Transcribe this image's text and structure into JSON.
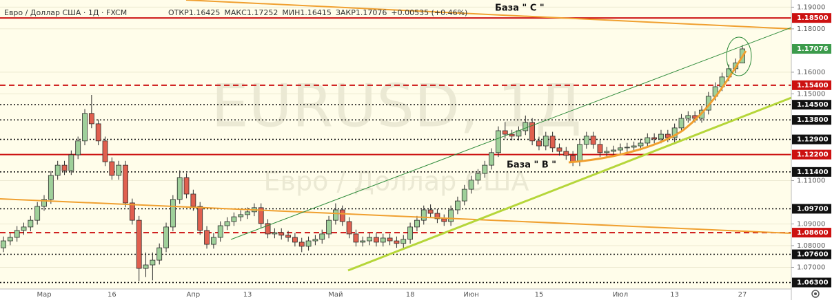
{
  "chart_data": {
    "type": "candlestick",
    "symbol": "Евро / Доллар США · 1Д · FXCM",
    "ohlc_names": [
      "ОТКР",
      "МАКС",
      "МИН",
      "ЗАКР"
    ],
    "change": "+0.00535 (+0.46%)",
    "watermark": "EURUSD, 1Д",
    "watermark_sub": "Евро / Доллар США",
    "annotations": [
      "База \" С \"",
      "База \" В \""
    ],
    "up_color": "#9fd09a",
    "down_color": "#e0604f",
    "wick_color": "#2b2b2b",
    "last_color": "#3c9b4c",
    "grid": true,
    "ylim": [
      1.06,
      1.1933
    ],
    "yticks": [
      {
        "value": 1.19,
        "label": "1.19000"
      },
      {
        "value": 1.18,
        "label": "1.18000"
      },
      {
        "value": 1.16,
        "label": "1.16000"
      },
      {
        "value": 1.15,
        "label": "1.15000"
      },
      {
        "value": 1.11,
        "label": "1.11000"
      },
      {
        "value": 1.09,
        "label": "1.09000"
      },
      {
        "value": 1.08,
        "label": "1.08000"
      },
      {
        "value": 1.07,
        "label": "1.07000"
      }
    ],
    "levels": [
      {
        "value": 1.185,
        "label": "1.18500",
        "color": "#cc1111",
        "style": "solid"
      },
      {
        "value": 1.154,
        "label": "1.15400",
        "color": "#cc1111",
        "style": "dashed"
      },
      {
        "value": 1.145,
        "label": "1.14500",
        "color": "#111111",
        "style": "dotted"
      },
      {
        "value": 1.138,
        "label": "1.13800",
        "color": "#111111",
        "style": "dotted"
      },
      {
        "value": 1.129,
        "label": "1.12900",
        "color": "#111111",
        "style": "dotted"
      },
      {
        "value": 1.122,
        "label": "1.12200",
        "color": "#cc1111",
        "style": "solid"
      },
      {
        "value": 1.114,
        "label": "1.11400",
        "color": "#111111",
        "style": "dotted"
      },
      {
        "value": 1.097,
        "label": "1.09700",
        "color": "#111111",
        "style": "dotted"
      },
      {
        "value": 1.086,
        "label": "1.08600",
        "color": "#cc1111",
        "style": "dashed"
      },
      {
        "value": 1.076,
        "label": "1.07600",
        "color": "#111111",
        "style": "dotted"
      },
      {
        "value": 1.063,
        "label": "1.06300",
        "color": "#111111",
        "style": "dotted"
      }
    ],
    "categories": [
      null,
      null,
      null,
      null,
      null,
      null,
      "Мар",
      null,
      null,
      null,
      null,
      null,
      null,
      null,
      null,
      null,
      "16",
      null,
      null,
      null,
      null,
      null,
      null,
      null,
      null,
      null,
      null,
      null,
      "Апр",
      null,
      null,
      null,
      null,
      null,
      null,
      null,
      "13",
      null,
      null,
      null,
      null,
      null,
      null,
      null,
      null,
      null,
      null,
      null,
      null,
      "Май",
      null,
      null,
      null,
      null,
      null,
      null,
      null,
      null,
      null,
      null,
      "18",
      null,
      null,
      null,
      null,
      null,
      null,
      null,
      null,
      "Июн",
      null,
      null,
      null,
      null,
      null,
      null,
      null,
      null,
      null,
      "15",
      null,
      null,
      null,
      null,
      null,
      null,
      null,
      null,
      null,
      null,
      null,
      "Июл",
      null,
      null,
      null,
      null,
      null,
      null,
      null,
      "13",
      null,
      null,
      null,
      null,
      null,
      null,
      null,
      null,
      null,
      "27"
    ],
    "open": [
      1.079,
      1.0822,
      1.0838,
      1.087,
      1.0886,
      1.0917,
      1.0981,
      1.1013,
      1.1124,
      1.1171,
      1.1146,
      1.1219,
      1.1283,
      1.141,
      1.1362,
      1.1283,
      1.1187,
      1.1124,
      1.1171,
      1.0997,
      1.0917,
      1.0695,
      1.0711,
      1.0733,
      1.079,
      1.0886,
      1.1013,
      1.1114,
      1.1038,
      1.0981,
      1.087,
      1.0806,
      1.0838,
      1.0892,
      1.0911,
      1.0933,
      1.0943,
      1.0956,
      1.0975,
      1.0902,
      1.0854,
      1.086,
      1.0848,
      1.0838,
      1.0816,
      1.0797,
      1.0822,
      1.0829,
      1.0854,
      1.0917,
      1.0965,
      1.0911,
      1.0854,
      1.0816,
      1.0822,
      1.0838,
      1.0816,
      1.0835,
      1.0822,
      1.081,
      1.0829,
      1.0886,
      1.0917,
      1.0965,
      1.0949,
      1.0924,
      1.0911,
      1.0965,
      1.1006,
      1.106,
      1.1102,
      1.1133,
      1.1171,
      1.1229,
      1.133,
      1.1314,
      1.1305,
      1.133,
      1.1368,
      1.1283,
      1.126,
      1.1305,
      1.1251,
      1.1235,
      1.1216,
      1.1187,
      1.1267,
      1.1305,
      1.1267,
      1.1229,
      1.1235,
      1.1241,
      1.1251,
      1.1254,
      1.126,
      1.1273,
      1.1298,
      1.1292,
      1.1314,
      1.1298,
      1.1343,
      1.1387,
      1.14,
      1.1387,
      1.1425,
      1.1489,
      1.1533,
      1.1578,
      1.1616,
      1.16425
    ],
    "high": [
      1.0842,
      1.0858,
      1.089,
      1.0906,
      1.0937,
      1.1001,
      1.1033,
      1.1144,
      1.1191,
      1.1191,
      1.1239,
      1.1303,
      1.143,
      1.1495,
      1.1382,
      1.1303,
      1.1207,
      1.1191,
      1.1191,
      1.1017,
      1.0937,
      1.0768,
      1.0768,
      1.081,
      1.0906,
      1.1033,
      1.1147,
      1.1134,
      1.1058,
      1.1001,
      1.089,
      1.0858,
      1.0912,
      1.0931,
      1.0953,
      1.0963,
      1.0976,
      1.0995,
      1.0995,
      1.0922,
      1.088,
      1.088,
      1.0868,
      1.0858,
      1.0836,
      1.0842,
      1.0849,
      1.0874,
      1.0937,
      1.0995,
      1.0985,
      1.0931,
      1.0874,
      1.0842,
      1.0858,
      1.0858,
      1.0855,
      1.0855,
      1.0842,
      1.0849,
      1.0906,
      1.0937,
      1.0985,
      1.099,
      1.0969,
      1.0944,
      1.0985,
      1.1026,
      1.108,
      1.1122,
      1.1153,
      1.1191,
      1.1249,
      1.135,
      1.137,
      1.1334,
      1.135,
      1.14,
      1.1388,
      1.1303,
      1.1325,
      1.1325,
      1.1271,
      1.1255,
      1.1236,
      1.1287,
      1.1325,
      1.1325,
      1.1287,
      1.1255,
      1.1261,
      1.1271,
      1.1274,
      1.128,
      1.1293,
      1.1318,
      1.1318,
      1.1334,
      1.1334,
      1.1363,
      1.1407,
      1.142,
      1.142,
      1.1445,
      1.1509,
      1.1553,
      1.1598,
      1.1636,
      1.1663,
      1.17252
    ],
    "low": [
      1.077,
      1.0802,
      1.0818,
      1.085,
      1.0866,
      1.0897,
      1.0961,
      1.0993,
      1.1104,
      1.1126,
      1.1126,
      1.1199,
      1.1263,
      1.1342,
      1.1263,
      1.1167,
      1.1104,
      1.1104,
      1.0977,
      1.0897,
      1.0636,
      1.0655,
      1.064,
      1.0713,
      1.077,
      1.0866,
      1.0993,
      1.1018,
      1.0961,
      1.085,
      1.0786,
      1.0786,
      1.0818,
      1.0872,
      1.0891,
      1.0913,
      1.0923,
      1.0936,
      1.0882,
      1.0834,
      1.0834,
      1.0828,
      1.0818,
      1.0796,
      1.077,
      1.0777,
      1.0802,
      1.0809,
      1.0834,
      1.0897,
      1.0891,
      1.0834,
      1.0796,
      1.0796,
      1.0802,
      1.0796,
      1.0796,
      1.0802,
      1.079,
      1.079,
      1.0809,
      1.0866,
      1.0897,
      1.0929,
      1.0904,
      1.0891,
      1.0891,
      1.0945,
      1.0986,
      1.104,
      1.1082,
      1.1113,
      1.1151,
      1.1209,
      1.1294,
      1.1285,
      1.1285,
      1.131,
      1.1263,
      1.124,
      1.124,
      1.1231,
      1.1215,
      1.1196,
      1.1167,
      1.1167,
      1.1247,
      1.1247,
      1.1209,
      1.1209,
      1.1215,
      1.1221,
      1.1231,
      1.1234,
      1.124,
      1.1253,
      1.1272,
      1.1272,
      1.1278,
      1.1278,
      1.1323,
      1.1367,
      1.1367,
      1.1367,
      1.1405,
      1.1469,
      1.1513,
      1.1558,
      1.1596,
      1.16415
    ],
    "close": [
      1.0822,
      1.0838,
      1.087,
      1.0886,
      1.0917,
      1.0981,
      1.1013,
      1.1124,
      1.1171,
      1.1146,
      1.1219,
      1.1283,
      1.141,
      1.1362,
      1.1283,
      1.1187,
      1.1124,
      1.1171,
      1.0997,
      1.0917,
      1.0695,
      1.0711,
      1.0733,
      1.079,
      1.0886,
      1.1013,
      1.1114,
      1.1038,
      1.0981,
      1.087,
      1.0806,
      1.0838,
      1.0892,
      1.0911,
      1.0933,
      1.0943,
      1.0956,
      1.0975,
      1.0902,
      1.0854,
      1.086,
      1.0848,
      1.0838,
      1.0816,
      1.0797,
      1.0822,
      1.0829,
      1.0854,
      1.0917,
      1.0965,
      1.0911,
      1.0854,
      1.0816,
      1.0822,
      1.0838,
      1.0816,
      1.0835,
      1.0822,
      1.081,
      1.0829,
      1.0886,
      1.0917,
      1.0965,
      1.0949,
      1.0924,
      1.0911,
      1.0965,
      1.1006,
      1.106,
      1.1102,
      1.1133,
      1.1171,
      1.1229,
      1.133,
      1.1314,
      1.1305,
      1.133,
      1.1368,
      1.1283,
      1.126,
      1.1305,
      1.1251,
      1.1235,
      1.1216,
      1.1187,
      1.1267,
      1.1305,
      1.1267,
      1.1229,
      1.1235,
      1.1241,
      1.1251,
      1.1254,
      1.126,
      1.1273,
      1.1298,
      1.1292,
      1.1314,
      1.1298,
      1.1343,
      1.1387,
      1.14,
      1.1387,
      1.1425,
      1.1489,
      1.1533,
      1.1578,
      1.1616,
      1.1643,
      1.17076
    ]
  }
}
